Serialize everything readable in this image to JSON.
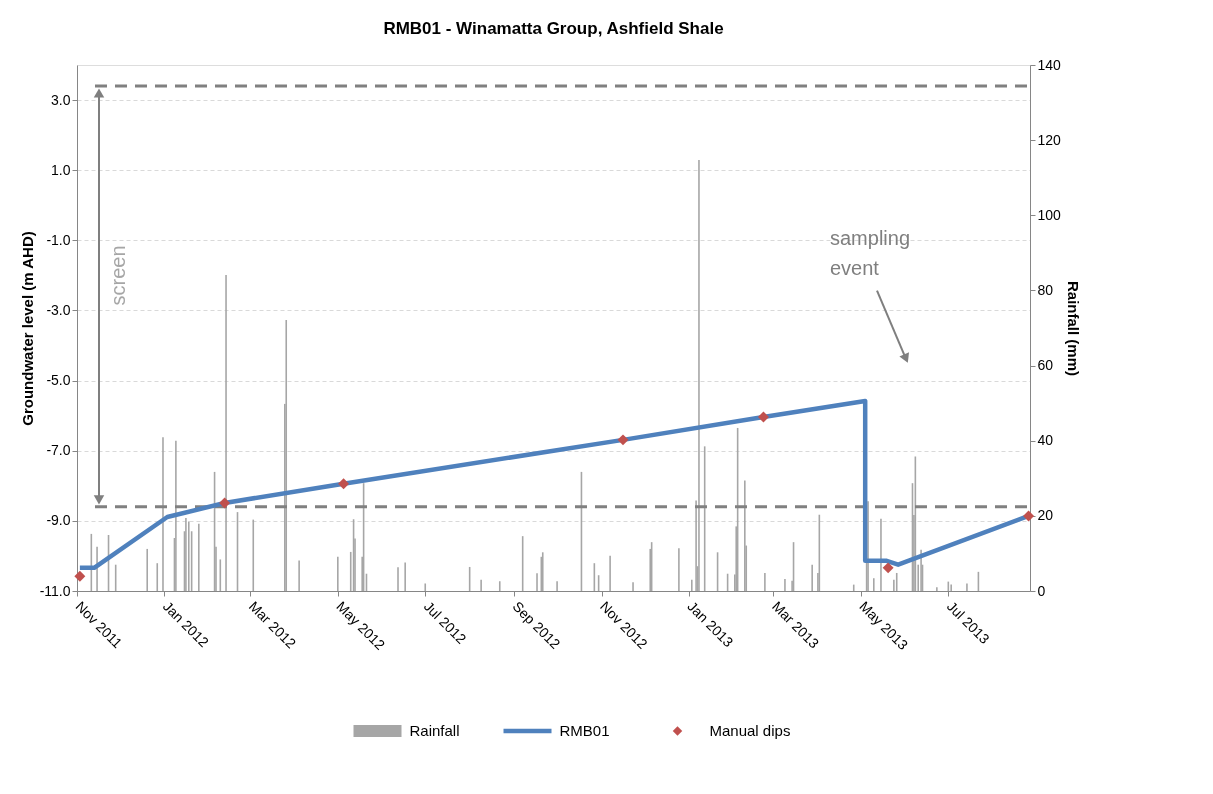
{
  "chart_data": {
    "type": "line",
    "title": "RMB01 - Winamatta Group, Ashfield Shale",
    "ylabel": "Groundwater level (m AHD)",
    "y2label": "Rainfall (mm)",
    "xlim": [
      "2011-11-01",
      "2013-08-27"
    ],
    "xticks": [
      {
        "value": "2011-11-01",
        "label": "Nov 2011"
      },
      {
        "value": "2012-01-01",
        "label": "Jan 2012"
      },
      {
        "value": "2012-03-01",
        "label": "Mar 2012"
      },
      {
        "value": "2012-05-01",
        "label": "May 2012"
      },
      {
        "value": "2012-07-01",
        "label": "Jul 2012"
      },
      {
        "value": "2012-09-01",
        "label": "Sep 2012"
      },
      {
        "value": "2012-11-01",
        "label": "Nov 2012"
      },
      {
        "value": "2013-01-01",
        "label": "Jan 2013"
      },
      {
        "value": "2013-03-01",
        "label": "Mar 2013"
      },
      {
        "value": "2013-05-01",
        "label": "May 2013"
      },
      {
        "value": "2013-07-01",
        "label": "Jul 2013"
      }
    ],
    "ylim": [
      -11,
      4
    ],
    "yticks": [
      {
        "value": -11,
        "label": "-11.0"
      },
      {
        "value": -9,
        "label": "-9.0"
      },
      {
        "value": -7,
        "label": "-7.0"
      },
      {
        "value": -5,
        "label": "-5.0"
      },
      {
        "value": -3,
        "label": "-3.0"
      },
      {
        "value": -1,
        "label": "-1.0"
      },
      {
        "value": 1,
        "label": "1.0"
      },
      {
        "value": 3,
        "label": "3.0"
      }
    ],
    "y2lim": [
      0,
      140
    ],
    "y2ticks": [
      0,
      20,
      40,
      60,
      80,
      100,
      120,
      140
    ],
    "grid": "y",
    "legend": "bottom",
    "series": [
      {
        "name": "Rainfall",
        "type": "bar",
        "axis": "y2",
        "color": "#a6a6a6",
        "x": [
          "2011-11-11",
          "2011-11-15",
          "2011-11-23",
          "2011-11-28",
          "2011-12-20",
          "2011-12-27",
          "2011-12-31",
          "2012-01-08",
          "2012-01-09",
          "2012-01-15",
          "2012-01-16",
          "2012-01-18",
          "2012-01-20",
          "2012-01-25",
          "2012-02-05",
          "2012-02-06",
          "2012-02-09",
          "2012-02-13",
          "2012-02-21",
          "2012-03-03",
          "2012-03-25",
          "2012-03-26",
          "2012-04-04",
          "2012-05-01",
          "2012-05-10",
          "2012-05-12",
          "2012-05-13",
          "2012-05-18",
          "2012-05-19",
          "2012-05-21",
          "2012-06-12",
          "2012-06-17",
          "2012-07-01",
          "2012-08-01",
          "2012-08-09",
          "2012-08-22",
          "2012-09-07",
          "2012-09-17",
          "2012-09-20",
          "2012-09-21",
          "2012-10-01",
          "2012-10-18",
          "2012-10-27",
          "2012-10-30",
          "2012-11-07",
          "2012-11-23",
          "2012-12-05",
          "2012-12-06",
          "2012-12-25",
          "2013-01-03",
          "2013-01-06",
          "2013-01-07",
          "2013-01-08",
          "2013-01-12",
          "2013-01-21",
          "2013-01-28",
          "2013-02-02",
          "2013-02-03",
          "2013-02-04",
          "2013-02-09",
          "2013-02-10",
          "2013-02-23",
          "2013-03-09",
          "2013-03-14",
          "2013-03-15",
          "2013-03-28",
          "2013-04-01",
          "2013-04-02",
          "2013-04-26",
          "2013-05-05",
          "2013-05-06",
          "2013-05-10",
          "2013-05-15",
          "2013-05-24",
          "2013-05-26",
          "2013-06-06",
          "2013-06-07",
          "2013-06-08",
          "2013-06-10",
          "2013-06-12",
          "2013-06-13",
          "2013-06-23",
          "2013-07-01",
          "2013-07-03",
          "2013-07-14",
          "2013-07-22"
        ],
        "values": [
          15.2,
          11.8,
          14.9,
          7.0,
          11.2,
          7.4,
          40.9,
          14.1,
          40.0,
          15.9,
          19.4,
          18.5,
          15.9,
          17.9,
          31.7,
          11.8,
          8.4,
          84.1,
          21.0,
          19.0,
          49.8,
          72.1,
          8.1,
          9.1,
          10.4,
          19.1,
          14.0,
          9.1,
          28.7,
          4.6,
          6.3,
          7.6,
          2.0,
          6.4,
          3.0,
          2.6,
          14.6,
          4.7,
          9.1,
          10.3,
          2.6,
          31.7,
          7.4,
          4.2,
          9.4,
          2.3,
          11.2,
          13.0,
          11.4,
          3.0,
          24.1,
          6.6,
          114.7,
          38.5,
          10.3,
          4.6,
          4.4,
          17.2,
          43.4,
          29.4,
          12.1,
          4.8,
          3.2,
          2.7,
          13.0,
          7.0,
          4.8,
          20.3,
          1.7,
          7.5,
          23.9,
          3.4,
          19.2,
          3.0,
          4.8,
          28.7,
          20.2,
          35.8,
          7.0,
          11.0,
          7.0,
          1.0,
          2.5,
          1.7,
          2.0,
          5.1
        ]
      },
      {
        "name": "RMB01",
        "color": "#4f81bd",
        "line_style": "solid",
        "marker": "none",
        "x": [
          "2011-11-03",
          "2011-11-13",
          "2012-01-03",
          "2012-02-12",
          "2012-05-05",
          "2012-11-16",
          "2013-02-22",
          "2013-05-04",
          "2013-05-04",
          "2013-05-19",
          "2013-05-27",
          "2013-08-26"
        ],
        "values": [
          -10.34,
          -10.34,
          -8.89,
          -8.49,
          -7.94,
          -6.69,
          -6.04,
          -5.58,
          -10.14,
          -10.14,
          -10.25,
          -8.86
        ]
      },
      {
        "name": "Manual dips",
        "type": "scatter",
        "color": "#c0504d",
        "marker": "diamond",
        "x": [
          "2011-11-03",
          "2012-02-12",
          "2012-05-05",
          "2012-11-16",
          "2013-02-22",
          "2013-05-20",
          "2013-08-26"
        ],
        "values": [
          -10.58,
          -8.49,
          -7.94,
          -6.69,
          -6.04,
          -10.34,
          -8.86
        ]
      }
    ],
    "ref_lines": [
      {
        "axis": "y",
        "value": 3.4,
        "color": "#808080",
        "line_style": "dashed"
      },
      {
        "axis": "y",
        "value": -8.6,
        "color": "#808080",
        "line_style": "dashed"
      }
    ],
    "annotations": [
      "screen",
      "sampling event"
    ]
  }
}
